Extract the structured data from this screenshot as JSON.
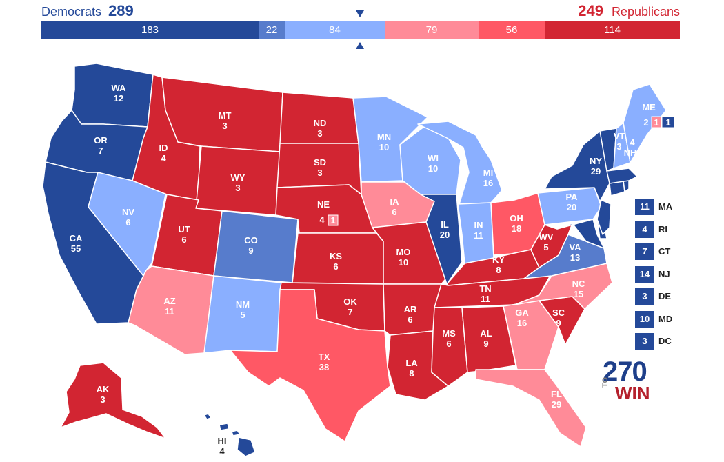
{
  "colors": {
    "safe_dem": "#244999",
    "likely_dem": "#577ccc",
    "lean_dem": "#8aafff",
    "lean_rep": "#ff8b98",
    "likely_rep": "#ff5865",
    "safe_rep": "#d22532"
  },
  "header": {
    "dem_label": "Democrats",
    "dem_total": "289",
    "rep_total": "249",
    "rep_label": "Republicans"
  },
  "bar": [
    {
      "label": "183",
      "value": 183,
      "color": "#244999"
    },
    {
      "label": "22",
      "value": 22,
      "color": "#577ccc"
    },
    {
      "label": "84",
      "value": 84,
      "color": "#8aafff"
    },
    {
      "label": "79",
      "value": 79,
      "color": "#ff8b98"
    },
    {
      "label": "56",
      "value": 56,
      "color": "#ff5865"
    },
    {
      "label": "114",
      "value": 114,
      "color": "#d22532"
    }
  ],
  "states": {
    "WA": {
      "abbr": "WA",
      "ev": "12"
    },
    "OR": {
      "abbr": "OR",
      "ev": "7"
    },
    "CA": {
      "abbr": "CA",
      "ev": "55"
    },
    "NV": {
      "abbr": "NV",
      "ev": "6"
    },
    "ID": {
      "abbr": "ID",
      "ev": "4"
    },
    "MT": {
      "abbr": "MT",
      "ev": "3"
    },
    "WY": {
      "abbr": "WY",
      "ev": "3"
    },
    "UT": {
      "abbr": "UT",
      "ev": "6"
    },
    "AZ": {
      "abbr": "AZ",
      "ev": "11"
    },
    "CO": {
      "abbr": "CO",
      "ev": "9"
    },
    "NM": {
      "abbr": "NM",
      "ev": "5"
    },
    "ND": {
      "abbr": "ND",
      "ev": "3"
    },
    "SD": {
      "abbr": "SD",
      "ev": "3"
    },
    "NE": {
      "abbr": "NE",
      "ev": "4",
      "ev_district": "1"
    },
    "KS": {
      "abbr": "KS",
      "ev": "6"
    },
    "OK": {
      "abbr": "OK",
      "ev": "7"
    },
    "TX": {
      "abbr": "TX",
      "ev": "38"
    },
    "MN": {
      "abbr": "MN",
      "ev": "10"
    },
    "IA": {
      "abbr": "IA",
      "ev": "6"
    },
    "MO": {
      "abbr": "MO",
      "ev": "10"
    },
    "AR": {
      "abbr": "AR",
      "ev": "6"
    },
    "LA": {
      "abbr": "LA",
      "ev": "8"
    },
    "WI": {
      "abbr": "WI",
      "ev": "10"
    },
    "IL": {
      "abbr": "IL",
      "ev": "20"
    },
    "MI": {
      "abbr": "MI",
      "ev": "16"
    },
    "IN": {
      "abbr": "IN",
      "ev": "11"
    },
    "OH": {
      "abbr": "OH",
      "ev": "18"
    },
    "KY": {
      "abbr": "KY",
      "ev": "8"
    },
    "TN": {
      "abbr": "TN",
      "ev": "11"
    },
    "MS": {
      "abbr": "MS",
      "ev": "6"
    },
    "AL": {
      "abbr": "AL",
      "ev": "9"
    },
    "GA": {
      "abbr": "GA",
      "ev": "16"
    },
    "FL": {
      "abbr": "FL",
      "ev": "29"
    },
    "SC": {
      "abbr": "SC",
      "ev": "9"
    },
    "NC": {
      "abbr": "NC",
      "ev": "15"
    },
    "VA": {
      "abbr": "VA",
      "ev": "13"
    },
    "WV": {
      "abbr": "WV",
      "ev": "5"
    },
    "PA": {
      "abbr": "PA",
      "ev": "20"
    },
    "NY": {
      "abbr": "NY",
      "ev": "29"
    },
    "VT": {
      "abbr": "VT",
      "ev": "3"
    },
    "NH": {
      "abbr": "NH",
      "ev": "4"
    },
    "ME": {
      "abbr": "ME",
      "ev": "2",
      "ev_d1": "1",
      "ev_d2": "1"
    },
    "AK": {
      "abbr": "AK",
      "ev": "3"
    },
    "HI": {
      "abbr": "HI",
      "ev": "4"
    }
  },
  "small_states": [
    {
      "ev": "11",
      "abbr": "MA"
    },
    {
      "ev": "4",
      "abbr": "RI"
    },
    {
      "ev": "7",
      "abbr": "CT"
    },
    {
      "ev": "14",
      "abbr": "NJ"
    },
    {
      "ev": "3",
      "abbr": "DE"
    },
    {
      "ev": "10",
      "abbr": "MD"
    },
    {
      "ev": "3",
      "abbr": "DC"
    }
  ],
  "logo": {
    "number": "270",
    "to": "TO",
    "win": "WIN"
  }
}
